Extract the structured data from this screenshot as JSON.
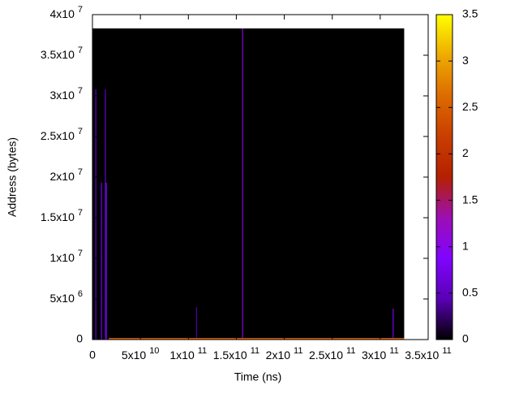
{
  "chart_data": {
    "type": "heatmap",
    "xlabel": "Time (ns)",
    "ylabel": "Address (bytes)",
    "xlim": [
      0,
      350000000000
    ],
    "ylim": [
      0,
      40000000
    ],
    "cblim": [
      0,
      3.5
    ],
    "xticks": [
      0,
      {
        "value": 50000000000,
        "label": "5x10",
        "exponent": "10"
      },
      {
        "value": 100000000000,
        "label": "1x10",
        "exponent": "11"
      },
      {
        "value": 150000000000,
        "label": "1.5x10",
        "exponent": "11"
      },
      {
        "value": 200000000000,
        "label": "2x10",
        "exponent": "11"
      },
      {
        "value": 250000000000,
        "label": "2.5x10",
        "exponent": "11"
      },
      {
        "value": 300000000000,
        "label": "3x10",
        "exponent": "11"
      },
      {
        "value": 350000000000,
        "label": "3.5x10",
        "exponent": "11"
      }
    ],
    "yticks": [
      0,
      {
        "value": 5000000,
        "label": "5x10",
        "exponent": "6"
      },
      {
        "value": 10000000,
        "label": "1x10",
        "exponent": "7"
      },
      {
        "value": 15000000,
        "label": "1.5x10",
        "exponent": "7"
      },
      {
        "value": 20000000,
        "label": "2x10",
        "exponent": "7"
      },
      {
        "value": 25000000,
        "label": "2.5x10",
        "exponent": "7"
      },
      {
        "value": 30000000,
        "label": "3x10",
        "exponent": "7"
      },
      {
        "value": 35000000,
        "label": "3.5x10",
        "exponent": "7"
      },
      {
        "value": 40000000,
        "label": "4x10",
        "exponent": "7"
      }
    ],
    "cbticks": [
      0,
      0.5,
      1,
      1.5,
      2,
      2.5,
      3,
      3.5
    ],
    "palette": [
      "#000000",
      "#5a00b4",
      "#8004ff",
      "#9c0eb4",
      "#b42000",
      "#c93e00",
      "#dd6b00",
      "#eeab00",
      "#ffff00"
    ],
    "cells": [
      {
        "x0": 0,
        "x1": 325000000000,
        "y0": 0,
        "y1": 38300000,
        "value": 0
      },
      {
        "x0": 3000000000,
        "x1": 4000000000,
        "y0": 0,
        "y1": 30800000,
        "value": 0.6
      },
      {
        "x0": 9000000000,
        "x1": 10000000000,
        "y0": 0,
        "y1": 19300000,
        "value": 0.8
      },
      {
        "x0": 13000000000,
        "x1": 14000000000,
        "y0": 0,
        "y1": 30800000,
        "value": 0.6
      },
      {
        "x0": 14000000000,
        "x1": 15000000000,
        "y0": 0,
        "y1": 19300000,
        "value": 0.8
      },
      {
        "x0": 108000000000,
        "x1": 109000000000,
        "y0": 0,
        "y1": 4000000,
        "value": 0.4
      },
      {
        "x0": 156000000000,
        "x1": 157000000000,
        "y0": 0,
        "y1": 38300000,
        "value": 1
      },
      {
        "x0": 313000000000,
        "x1": 314000000000,
        "y0": 0,
        "y1": 3800000,
        "value": 0.8
      },
      {
        "x0": 17000000000,
        "x1": 325000000000,
        "y0": 0,
        "y1": 200000,
        "value": 2.5
      }
    ]
  }
}
